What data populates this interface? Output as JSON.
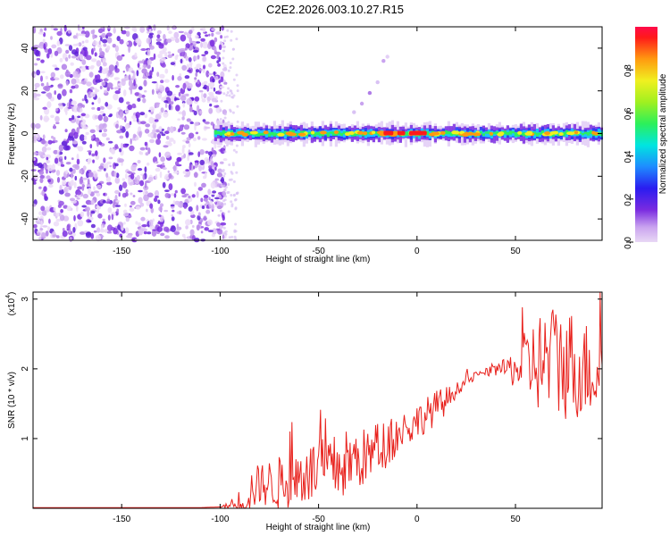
{
  "title": "C2E2.2026.003.10.27.R15",
  "chart_data": [
    {
      "type": "heatmap",
      "name": "spectrogram",
      "xlabel": "Height of straight line (km)",
      "ylabel": "Frequency (Hz)",
      "xlim": [
        -195,
        94
      ],
      "ylim": [
        -50,
        50
      ],
      "xticks": [
        -150,
        -100,
        -50,
        0,
        50
      ],
      "yticks": [
        -40,
        -20,
        0,
        20,
        40
      ],
      "noise_region_x": [
        -195,
        -100
      ],
      "signal_band_freq_hz": 0,
      "colorbar": {
        "label": "Normalized spectral amplitude",
        "range": [
          0,
          1
        ],
        "ticks": [
          "0.0",
          "0.2",
          "0.4",
          "0.6",
          "0.8"
        ]
      }
    },
    {
      "type": "line",
      "name": "snr",
      "xlabel": "Height of straight line (km)",
      "ylabel": "SNR (10 * v/v)",
      "scale_label": "(x10",
      "scale_exp": "4",
      "xlim": [
        -195,
        94
      ],
      "ylim": [
        0,
        3.1
      ],
      "xticks": [
        -150,
        -100,
        -50,
        0,
        50
      ],
      "yticks": [
        1,
        2,
        3
      ],
      "series": [
        {
          "name": "SNR",
          "color": "#e8211c",
          "x": [
            -195,
            -110,
            -100,
            -92,
            -88,
            -85,
            -82,
            -80,
            -75,
            -70,
            -65,
            -60,
            -55,
            -50,
            -45,
            -40,
            -35,
            -30,
            -25,
            -20,
            -15,
            -10,
            -5,
            0,
            5,
            10,
            15,
            20,
            25,
            30,
            35,
            40,
            45,
            50,
            55,
            60,
            65,
            70,
            75,
            80,
            85,
            90,
            94
          ],
          "y": [
            0.01,
            0.01,
            0.02,
            0.05,
            0.15,
            0.25,
            0.3,
            0.35,
            0.35,
            0.35,
            0.4,
            0.45,
            0.5,
            0.55,
            0.55,
            0.6,
            0.65,
            0.7,
            0.75,
            0.85,
            0.95,
            1.05,
            1.15,
            1.25,
            1.35,
            1.45,
            1.55,
            1.7,
            1.82,
            1.9,
            1.95,
            1.98,
            2.0,
            2.0,
            2.05,
            2.1,
            2.1,
            2.1,
            2.1,
            2.05,
            2.0,
            2.0,
            2.0
          ],
          "jitter": [
            0,
            0,
            0,
            0.1,
            0.3,
            0.3,
            0.3,
            0.3,
            0.35,
            0.4,
            0.4,
            0.45,
            0.45,
            0.45,
            0.45,
            0.5,
            0.5,
            0.45,
            0.4,
            0.4,
            0.35,
            0.3,
            0.3,
            0.25,
            0.25,
            0.25,
            0.2,
            0.1,
            0.08,
            0.06,
            0.06,
            0.08,
            0.15,
            0.3,
            0.5,
            0.7,
            0.8,
            0.85,
            0.85,
            0.8,
            0.7,
            0.7,
            0.7
          ]
        }
      ]
    }
  ]
}
